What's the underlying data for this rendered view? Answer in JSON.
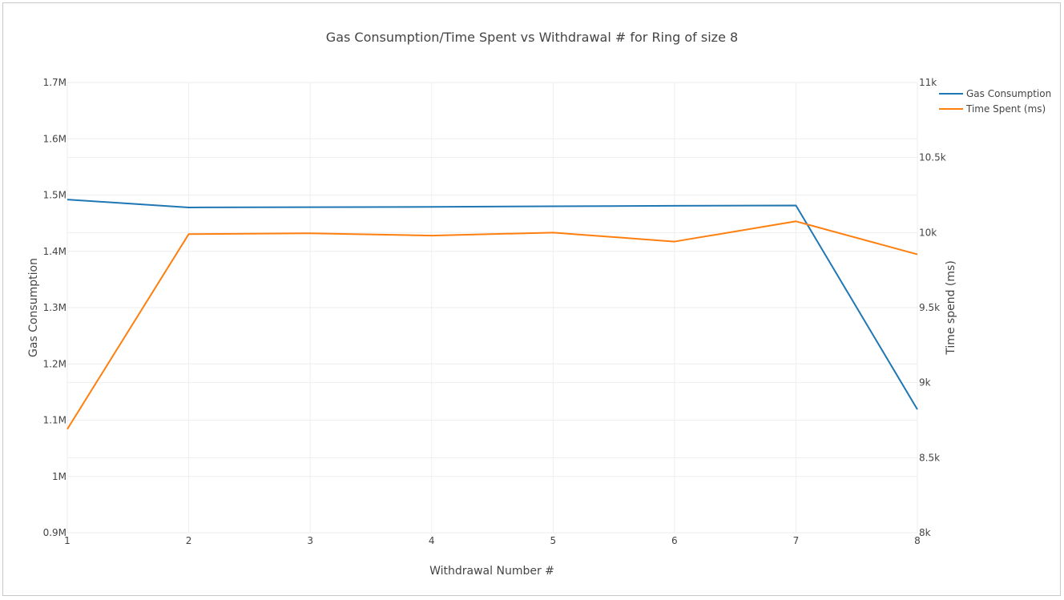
{
  "chart_data": {
    "type": "line",
    "title": "Gas Consumption/Time Spent vs Withdrawal # for Ring of size 8",
    "xlabel": "Withdrawal Number #",
    "ylabel": "Gas Consumption",
    "y2label": "Time spend (ms)",
    "x": [
      1,
      2,
      3,
      4,
      5,
      6,
      7,
      8
    ],
    "xticks": [
      "1",
      "2",
      "3",
      "4",
      "5",
      "6",
      "7",
      "8"
    ],
    "ylim": [
      900000,
      1700000
    ],
    "yticks": [
      {
        "value": 900000,
        "label": "0.9M"
      },
      {
        "value": 1000000,
        "label": "1M"
      },
      {
        "value": 1100000,
        "label": "1.1M"
      },
      {
        "value": 1200000,
        "label": "1.2M"
      },
      {
        "value": 1300000,
        "label": "1.3M"
      },
      {
        "value": 1400000,
        "label": "1.4M"
      },
      {
        "value": 1500000,
        "label": "1.5M"
      },
      {
        "value": 1600000,
        "label": "1.6M"
      },
      {
        "value": 1700000,
        "label": "1.7M"
      }
    ],
    "y2lim": [
      8000,
      11000
    ],
    "y2ticks": [
      {
        "value": 8000,
        "label": "8k"
      },
      {
        "value": 8500,
        "label": "8.5k"
      },
      {
        "value": 9000,
        "label": "9k"
      },
      {
        "value": 9500,
        "label": "9.5k"
      },
      {
        "value": 10000,
        "label": "10k"
      },
      {
        "value": 10500,
        "label": "10.5k"
      },
      {
        "value": 11000,
        "label": "11k"
      }
    ],
    "grid": true,
    "legend_position": "top-right",
    "series": [
      {
        "name": "Gas Consumption",
        "axis": "left",
        "color": "#1f77b4",
        "values": [
          1492000,
          1478000,
          1478500,
          1479000,
          1480000,
          1481000,
          1481500,
          1119000
        ]
      },
      {
        "name": "Time Spent (ms)",
        "axis": "right",
        "color": "#ff7f0e",
        "values": [
          8690,
          9990,
          9995,
          9980,
          10000,
          9940,
          10075,
          9855
        ]
      }
    ]
  }
}
